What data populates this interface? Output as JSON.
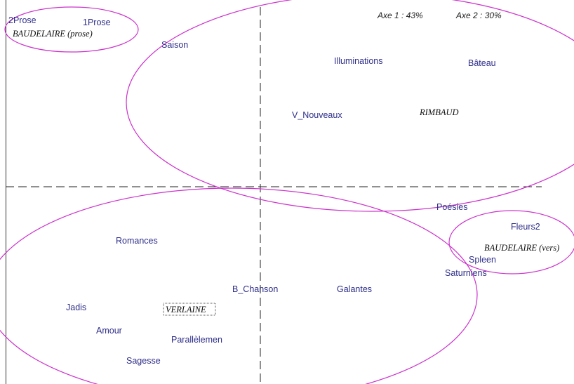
{
  "caption": {
    "axis1": "Axe 1 :  43%",
    "axis2": "Axe 2 :  30%"
  },
  "groups": [
    "BAUDELAIRE (prose)",
    "RIMBAUD",
    "BAUDELAIRE (vers)",
    "VERLAINE"
  ],
  "labels": [
    "2Prose",
    "1Prose",
    "Saison",
    "Illuminations",
    "Bâteau",
    "V_Nouveaux",
    "Poésies",
    "Fleurs2",
    "Spleen",
    "Saturniens",
    "Romances",
    "B_Chanson",
    "Galantes",
    "Jadis",
    "Amour",
    "Parallèlemen",
    "Sagesse"
  ]
}
